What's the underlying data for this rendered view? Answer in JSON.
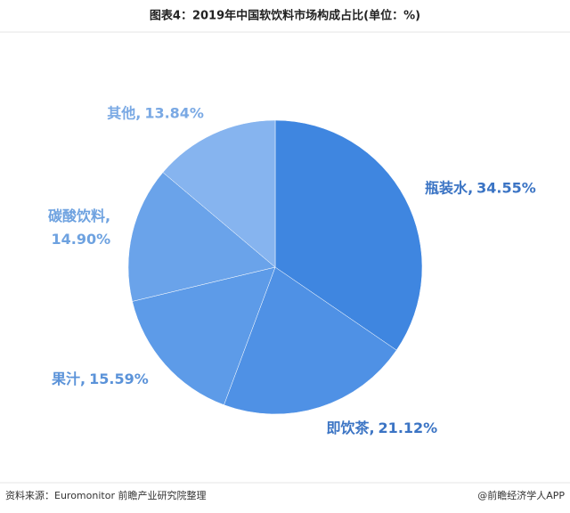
{
  "chart_data": {
    "type": "pie",
    "title": "图表4：2019年中国软饮料市场构成占比(单位：%)",
    "categories": [
      "瓶装水",
      "即饮茶",
      "果汁",
      "碳酸饮料",
      "其他"
    ],
    "values": [
      34.55,
      21.12,
      15.59,
      14.9,
      13.84
    ],
    "value_labels": [
      "34.55%",
      "21.12%",
      "15.59%",
      "14.90%",
      "13.84%"
    ],
    "label_separator": ",",
    "colors": [
      "#3f86e0",
      "#4f91e5",
      "#5d9be8",
      "#6aa3ea",
      "#86b4ef"
    ],
    "label_colors": [
      "#3b74c4",
      "#3b74c4",
      "#5b93d9",
      "#6ea2e0",
      "#7aa9e4"
    ],
    "source": "资料来源：Euromonitor 前瞻产业研究院整理",
    "credit": "@前瞻经济学人APP"
  }
}
